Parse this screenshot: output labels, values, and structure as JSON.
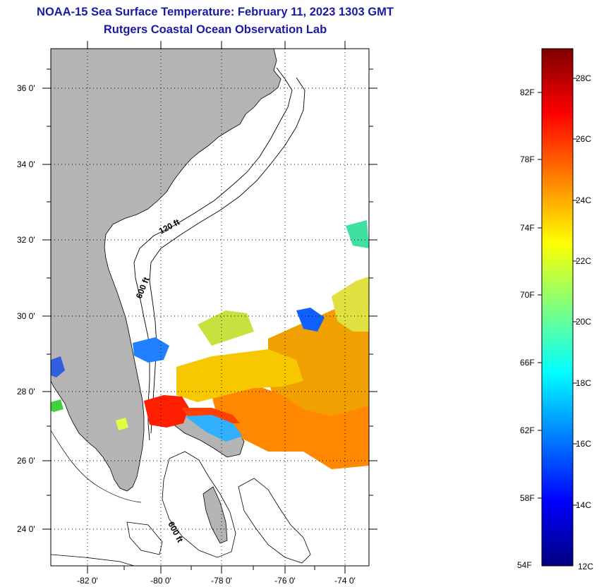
{
  "title": "NOAA-15 Sea Surface Temperature:  February 11, 2023 1303 GMT",
  "subtitle": "Rutgers Coastal Ocean Observation Lab",
  "map": {
    "lat_ticks": [
      "36 0'",
      "34 0'",
      "32 0'",
      "30 0'",
      "28 0'",
      "26 0'",
      "24 0'"
    ],
    "lon_ticks": [
      "-82 0'",
      "-80 0'",
      "-78 0'",
      "-76 0'",
      "-74 0'"
    ],
    "contour_labels": [
      "120 ft",
      "600 ft",
      "600 ft"
    ],
    "colors": {
      "land": "#b4b4b4",
      "ocean": "#ffffff",
      "grid": "#000000"
    }
  },
  "colorbar": {
    "fahrenheit": [
      "82F",
      "78F",
      "74F",
      "70F",
      "66F",
      "62F",
      "58F",
      "54F"
    ],
    "celsius": [
      "28C",
      "26C",
      "24C",
      "22C",
      "20C",
      "18C",
      "16C",
      "14C",
      "12C"
    ],
    "stops": [
      "#00007f",
      "#0000ff",
      "#007fff",
      "#00ffff",
      "#7fff7f",
      "#ffff00",
      "#ff7f00",
      "#ff0000",
      "#7f0000"
    ]
  }
}
